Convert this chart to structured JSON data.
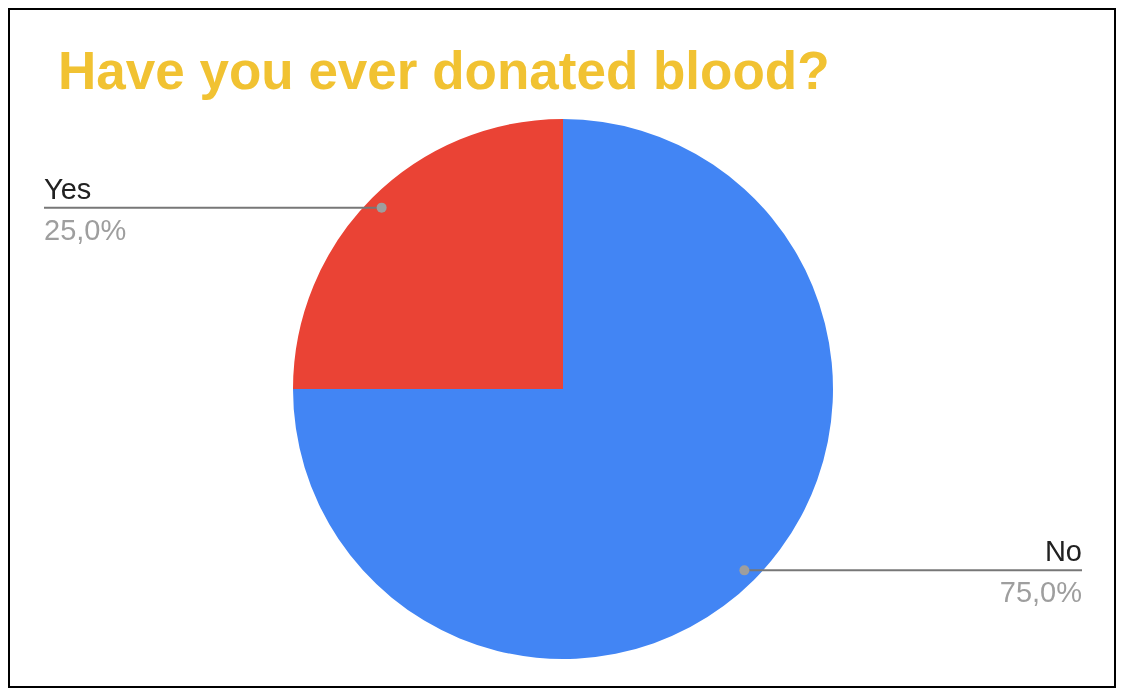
{
  "chart_data": {
    "type": "pie",
    "title": "Have you ever donated blood?",
    "categories": [
      "No",
      "Yes"
    ],
    "values": [
      75,
      25
    ],
    "colors": [
      "#4285f4",
      "#ea4335"
    ],
    "value_labels": [
      "75,0%",
      "25,0%"
    ],
    "legend": false
  }
}
